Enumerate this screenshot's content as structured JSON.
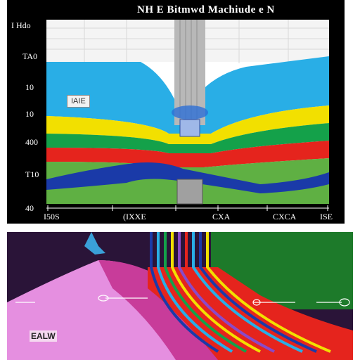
{
  "top_panel": {
    "title": "NH E Bitmwd Machiude e N",
    "y_labels": [
      "I Hdo",
      "TA0",
      "10",
      "10",
      "400",
      "T10",
      "40"
    ],
    "x_labels": [
      "I50S",
      "(IXXE",
      "CXA",
      "CXCA",
      "ISE"
    ],
    "inset_label": "IAIE"
  },
  "bottom_panel": {
    "inset_label": "EALW"
  },
  "colors": {
    "sky": "#f4f4f4",
    "cyan": "#29aee6",
    "yellow": "#f2e000",
    "green": "#14a14a",
    "red": "#e5241d",
    "blue": "#1a3aa8",
    "pink": "#e58fe0",
    "magenta": "#c83c9a"
  }
}
